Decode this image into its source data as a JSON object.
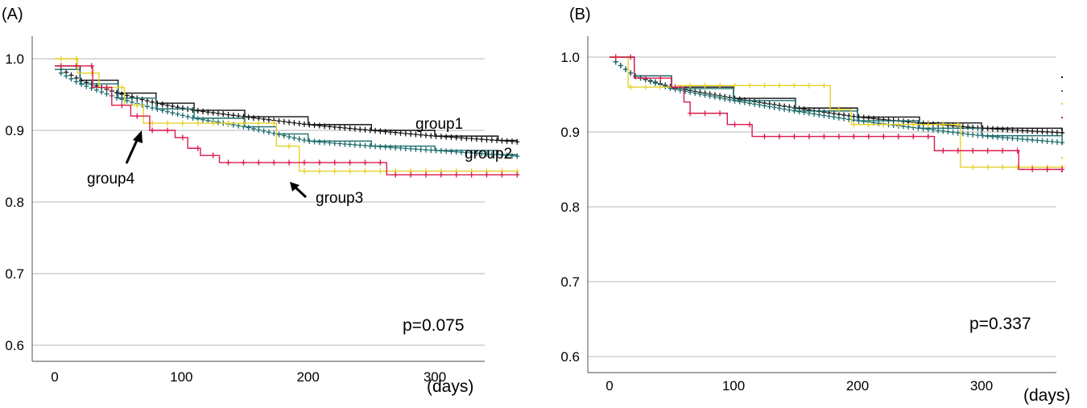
{
  "colors": {
    "group1": "#111111",
    "group2": "#1a6b6b",
    "group3": "#e6d12a",
    "group4": "#d81b4f",
    "grid": "#cfcfcf",
    "frame": "#6e6e6e"
  },
  "chart_data": [
    {
      "type": "line",
      "panel_label": "(A)",
      "x_unit": "(days)",
      "p_value": "p=0.075",
      "xlim": [
        0,
        365
      ],
      "ylim": [
        0.6,
        1.0
      ],
      "x_ticks": [
        "0",
        "100",
        "200",
        "300"
      ],
      "y_ticks": [
        "1.0",
        "0.9",
        "0.8",
        "0.7",
        "0.6"
      ],
      "grid": true,
      "series": [
        {
          "name": "group1",
          "color_key": "group1",
          "points": [
            [
              0,
              0.99
            ],
            [
              20,
              0.97
            ],
            [
              50,
              0.952
            ],
            [
              80,
              0.938
            ],
            [
              110,
              0.928
            ],
            [
              150,
              0.919
            ],
            [
              200,
              0.908
            ],
            [
              250,
              0.9
            ],
            [
              300,
              0.892
            ],
            [
              350,
              0.886
            ],
            [
              365,
              0.884
            ]
          ]
        },
        {
          "name": "group2",
          "color_key": "group2",
          "points": [
            [
              0,
              0.985
            ],
            [
              20,
              0.965
            ],
            [
              50,
              0.945
            ],
            [
              80,
              0.93
            ],
            [
              110,
              0.917
            ],
            [
              150,
              0.905
            ],
            [
              175,
              0.895
            ],
            [
              200,
              0.885
            ],
            [
              250,
              0.878
            ],
            [
              300,
              0.872
            ],
            [
              350,
              0.866
            ],
            [
              365,
              0.864
            ]
          ]
        },
        {
          "name": "group3",
          "color_key": "group3",
          "points": [
            [
              0,
              1.0
            ],
            [
              18,
              1.0
            ],
            [
              18,
              0.98
            ],
            [
              35,
              0.96
            ],
            [
              55,
              0.935
            ],
            [
              70,
              0.91
            ],
            [
              175,
              0.91
            ],
            [
              175,
              0.878
            ],
            [
              193,
              0.878
            ],
            [
              193,
              0.843
            ],
            [
              365,
              0.843
            ]
          ]
        },
        {
          "name": "group4",
          "color_key": "group4",
          "points": [
            [
              0,
              0.99
            ],
            [
              30,
              0.96
            ],
            [
              45,
              0.935
            ],
            [
              60,
              0.92
            ],
            [
              75,
              0.9
            ],
            [
              95,
              0.89
            ],
            [
              105,
              0.875
            ],
            [
              115,
              0.865
            ],
            [
              130,
              0.855
            ],
            [
              262,
              0.855
            ],
            [
              262,
              0.838
            ],
            [
              365,
              0.838
            ]
          ]
        }
      ]
    },
    {
      "type": "line",
      "panel_label": "(B)",
      "x_unit": "(days)",
      "p_value": "p=0.337",
      "xlim": [
        0,
        365
      ],
      "ylim": [
        0.6,
        1.0
      ],
      "x_ticks": [
        "0",
        "100",
        "200",
        "300"
      ],
      "y_ticks": [
        "1.0",
        "0.9",
        "0.8",
        "0.7",
        "0.6"
      ],
      "grid": true,
      "series": [
        {
          "name": "group1",
          "color_key": "group1",
          "points": [
            [
              0,
              1.0
            ],
            [
              20,
              0.975
            ],
            [
              50,
              0.96
            ],
            [
              100,
              0.945
            ],
            [
              150,
              0.932
            ],
            [
              200,
              0.92
            ],
            [
              250,
              0.912
            ],
            [
              300,
              0.905
            ],
            [
              365,
              0.899
            ]
          ]
        },
        {
          "name": "group2",
          "color_key": "group2",
          "points": [
            [
              0,
              1.0
            ],
            [
              20,
              0.975
            ],
            [
              50,
              0.958
            ],
            [
              100,
              0.942
            ],
            [
              150,
              0.928
            ],
            [
              200,
              0.915
            ],
            [
              250,
              0.905
            ],
            [
              300,
              0.895
            ],
            [
              365,
              0.886
            ]
          ]
        },
        {
          "name": "group3",
          "color_key": "group3",
          "points": [
            [
              0,
              1.0
            ],
            [
              15,
              0.96
            ],
            [
              50,
              0.96
            ],
            [
              55,
              0.962
            ],
            [
              178,
              0.962
            ],
            [
              178,
              0.93
            ],
            [
              195,
              0.93
            ],
            [
              195,
              0.91
            ],
            [
              283,
              0.91
            ],
            [
              283,
              0.853
            ],
            [
              365,
              0.853
            ]
          ]
        },
        {
          "name": "group4",
          "color_key": "group4",
          "points": [
            [
              0,
              1.0
            ],
            [
              20,
              0.972
            ],
            [
              50,
              0.96
            ],
            [
              60,
              0.94
            ],
            [
              65,
              0.925
            ],
            [
              85,
              0.925
            ],
            [
              95,
              0.91
            ],
            [
              115,
              0.908
            ],
            [
              115,
              0.894
            ],
            [
              262,
              0.894
            ],
            [
              262,
              0.875
            ],
            [
              330,
              0.875
            ],
            [
              330,
              0.85
            ],
            [
              365,
              0.85
            ]
          ]
        }
      ]
    }
  ],
  "annotations": {
    "group1": "group1",
    "group2": "group2",
    "group3": "group3",
    "group4": "group4"
  }
}
